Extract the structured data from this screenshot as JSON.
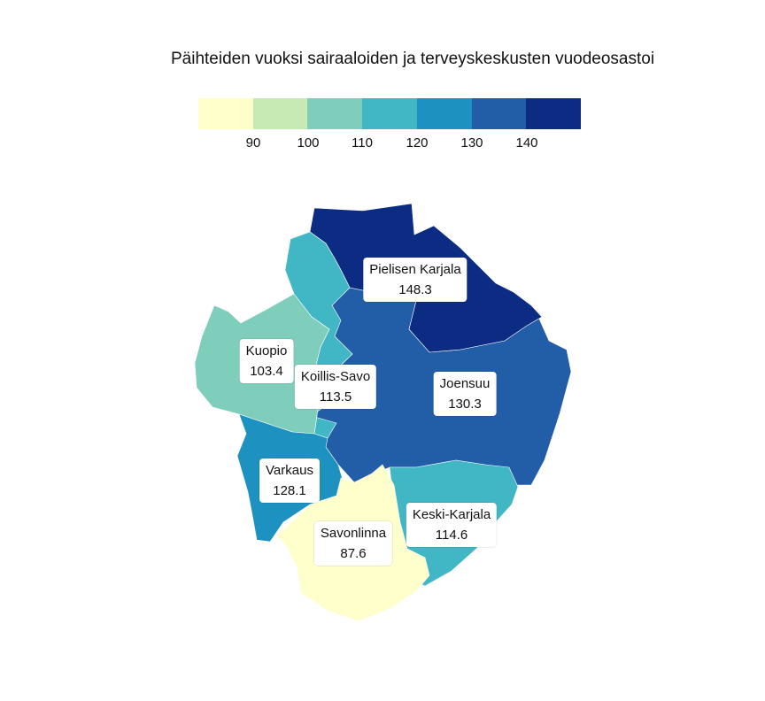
{
  "title": "Päihteiden vuoksi sairaaloiden ja terveyskeskusten vuodeosastoi",
  "legend": {
    "colors": [
      "#ffffcc",
      "#c7e9b4",
      "#7fcdbb",
      "#41b6c4",
      "#1d91c0",
      "#225ea8",
      "#0c2c84"
    ],
    "ticks": [
      "90",
      "100",
      "110",
      "120",
      "130",
      "140"
    ]
  },
  "regions": [
    {
      "name": "Pielisen Karjala",
      "value": "148.3",
      "color": "#0c2c84"
    },
    {
      "name": "Kuopio",
      "value": "103.4",
      "color": "#7fcdbb"
    },
    {
      "name": "Koillis-Savo",
      "value": "113.5",
      "color": "#41b6c4"
    },
    {
      "name": "Joensuu",
      "value": "130.3",
      "color": "#225ea8"
    },
    {
      "name": "Varkaus",
      "value": "128.1",
      "color": "#1d91c0"
    },
    {
      "name": "Keski-Karjala",
      "value": "114.6",
      "color": "#41b6c4"
    },
    {
      "name": "Savonlinna",
      "value": "87.6",
      "color": "#ffffcc"
    }
  ]
}
